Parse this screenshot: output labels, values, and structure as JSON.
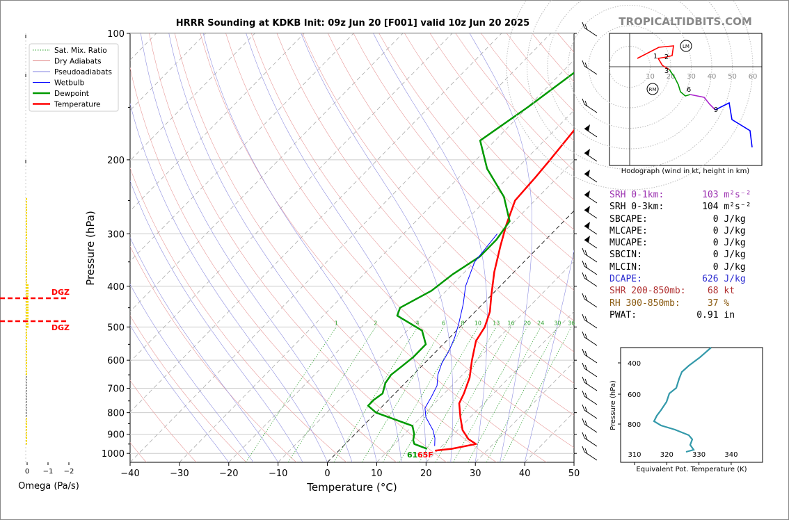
{
  "title": "HRRR Sounding at KDKB Init: 09z Jun 20 [F001] valid 10z Jun 20 2025",
  "brand": "TROPICALTIDBITS.COM",
  "chart_data": {
    "type": "line",
    "xlabel": "Temperature (°C)",
    "ylabel": "Pressure (hPa)",
    "xlim": [
      -40,
      50
    ],
    "ylim": [
      1050,
      100
    ],
    "y_scale": "log",
    "x_ticks": [
      "−40",
      "−30",
      "−20",
      "−10",
      "0",
      "10",
      "20",
      "30",
      "40",
      "50"
    ],
    "y_ticks": [
      {
        "p": 100,
        "label": "100"
      },
      {
        "p": 200,
        "label": "200"
      },
      {
        "p": 300,
        "label": "300"
      },
      {
        "p": 400,
        "label": "400"
      },
      {
        "p": 500,
        "label": "500"
      },
      {
        "p": 600,
        "label": "600"
      },
      {
        "p": 700,
        "label": "700"
      },
      {
        "p": 800,
        "label": "800"
      },
      {
        "p": 900,
        "label": "900"
      },
      {
        "p": 1000,
        "label": "1000"
      }
    ],
    "legend": {
      "placement": "top-left",
      "entries": [
        {
          "label": "Sat. Mix. Ratio",
          "color": "#2ca02c",
          "style": "dotted"
        },
        {
          "label": "Dry Adiabats",
          "color": "#e08080",
          "style": "solid"
        },
        {
          "label": "Pseudoadiabats",
          "color": "#8080e0",
          "style": "solid"
        },
        {
          "label": "Wetbulb",
          "color": "#0000ff",
          "style": "solid"
        },
        {
          "label": "Dewpoint",
          "color": "#009900",
          "style": "solid"
        },
        {
          "label": "Temperature",
          "color": "#ff0000",
          "style": "solid"
        }
      ]
    },
    "mixing_ratio_labels": [
      "1",
      "2",
      "4",
      "6",
      "8",
      "10",
      "13",
      "16",
      "20",
      "24",
      "30",
      "36"
    ],
    "series": [
      {
        "name": "Temperature",
        "color": "#ff0000",
        "points": [
          [
            19.5,
            985
          ],
          [
            22.5,
            975
          ],
          [
            26.5,
            950
          ],
          [
            24,
            925
          ],
          [
            21,
            880
          ],
          [
            18,
            820
          ],
          [
            15,
            760
          ],
          [
            14,
            720
          ],
          [
            12,
            660
          ],
          [
            9,
            600
          ],
          [
            6,
            540
          ],
          [
            5,
            500
          ],
          [
            3,
            460
          ],
          [
            0,
            420
          ],
          [
            -4,
            370
          ],
          [
            -8,
            320
          ],
          [
            -11,
            285
          ],
          [
            -14,
            250
          ],
          [
            -14.5,
            220
          ],
          [
            -15,
            200
          ],
          [
            -16,
            170
          ],
          [
            -17,
            150
          ],
          [
            -15,
            130
          ],
          [
            -11,
            115
          ],
          [
            -7,
            100
          ]
        ]
      },
      {
        "name": "Dewpoint",
        "color": "#009900",
        "points": [
          [
            17.5,
            975
          ],
          [
            14,
            950
          ],
          [
            13,
            930
          ],
          [
            12,
            900
          ],
          [
            10,
            860
          ],
          [
            0,
            800
          ],
          [
            -3,
            770
          ],
          [
            -3,
            745
          ],
          [
            -2.5,
            720
          ],
          [
            -4,
            680
          ],
          [
            -4.5,
            650
          ],
          [
            -4,
            620
          ],
          [
            -3.5,
            590
          ],
          [
            -3.5,
            550
          ],
          [
            -7,
            510
          ],
          [
            -15,
            470
          ],
          [
            -16,
            450
          ],
          [
            -13,
            410
          ],
          [
            -12,
            375
          ],
          [
            -10,
            340
          ],
          [
            -10,
            310
          ],
          [
            -11,
            280
          ],
          [
            -17,
            245
          ],
          [
            -26,
            210
          ],
          [
            -33,
            180
          ],
          [
            -30,
            150
          ],
          [
            -27,
            120
          ],
          [
            -23,
            100
          ]
        ]
      },
      {
        "name": "Wetbulb",
        "color": "#0000ff",
        "points": [
          [
            18.5,
            960
          ],
          [
            17,
            920
          ],
          [
            15,
            880
          ],
          [
            11,
            820
          ],
          [
            9,
            780
          ],
          [
            8,
            730
          ],
          [
            7,
            690
          ],
          [
            5,
            650
          ],
          [
            3.5,
            610
          ],
          [
            2.5,
            570
          ],
          [
            1,
            530
          ],
          [
            -1,
            490
          ],
          [
            -4,
            440
          ],
          [
            -7,
            400
          ],
          [
            -10,
            350
          ],
          [
            -11,
            300
          ]
        ]
      }
    ],
    "surface_labels": {
      "dewpoint": "61",
      "temperature": "65F"
    },
    "dgz_label": "DGZ",
    "omega": {
      "xlabel": "Omega (Pa/s)",
      "ticks": [
        "0",
        "−1",
        "−2"
      ]
    }
  },
  "hodograph": {
    "label": "Hodograph (wind in kt, height in km)",
    "rings": [
      "10",
      "20",
      "30",
      "40",
      "50",
      "60"
    ],
    "points": [
      "1",
      "2",
      "3",
      "6",
      "9"
    ],
    "markers": [
      "LM",
      "RM"
    ]
  },
  "stats": [
    {
      "label": "SRH 0-1km:",
      "value": "103",
      "unit": "m²s⁻²",
      "color": "#9b30b0"
    },
    {
      "label": "SRH 0-3km:",
      "value": "104",
      "unit": "m²s⁻²",
      "color": "#000000"
    },
    {
      "label": "SBCAPE:",
      "value": "0",
      "unit": "J/kg",
      "color": "#000000"
    },
    {
      "label": "MLCAPE:",
      "value": "0",
      "unit": "J/kg",
      "color": "#000000"
    },
    {
      "label": "MUCAPE:",
      "value": "0",
      "unit": "J/kg",
      "color": "#000000"
    },
    {
      "label": "SBCIN:",
      "value": "0",
      "unit": "J/kg",
      "color": "#000000"
    },
    {
      "label": "MLCIN:",
      "value": "0",
      "unit": "J/kg",
      "color": "#000000"
    },
    {
      "label": "DCAPE:",
      "value": "626",
      "unit": "J/kg",
      "color": "#2a2ad0"
    },
    {
      "label": "SHR 200-850mb:",
      "value": "68",
      "unit": "kt",
      "color": "#b03030"
    },
    {
      "label": "RH 300-850mb:",
      "value": "37",
      "unit": "%",
      "color": "#8a5a10"
    },
    {
      "label": "PWAT:",
      "value": "0.91",
      "unit": "in",
      "color": "#000000"
    }
  ],
  "theta_e": {
    "xlabel": "Equivalent Pot. Temperature (K)",
    "ylabel": "Pressure (hPa)",
    "x_ticks": [
      "310",
      "320",
      "330",
      "340"
    ],
    "y_ticks": [
      "400",
      "600",
      "800"
    ],
    "color": "#3399aa"
  }
}
